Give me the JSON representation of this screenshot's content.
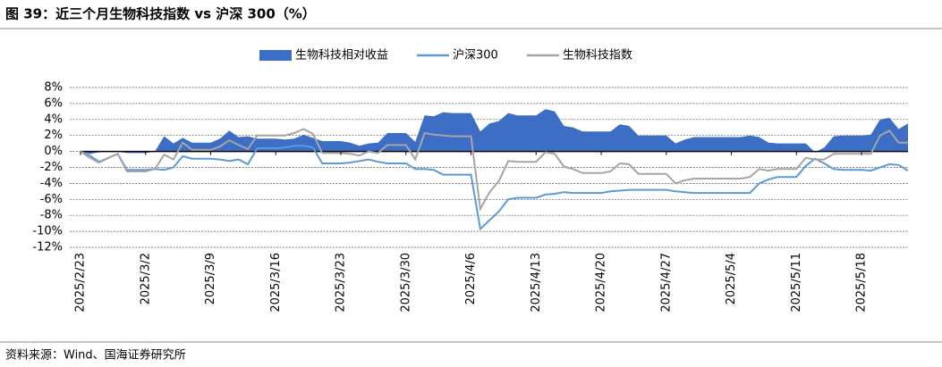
{
  "title": "图 39：近三个月生物科技指数 vs 沪深 300（%）",
  "source": "资料来源：Wind、国海证券研究所",
  "chart_data": {
    "type": "line",
    "legend": "top",
    "grid": true,
    "categories": [
      "2025/2/23",
      null,
      null,
      null,
      null,
      null,
      null,
      "2025/3/2",
      null,
      null,
      null,
      null,
      null,
      null,
      "2025/3/9",
      null,
      null,
      null,
      null,
      null,
      null,
      "2025/3/16",
      null,
      null,
      null,
      null,
      null,
      null,
      "2025/3/23",
      null,
      null,
      null,
      null,
      null,
      null,
      "2025/3/30",
      null,
      null,
      null,
      null,
      null,
      null,
      "2025/4/6",
      null,
      null,
      null,
      null,
      null,
      null,
      "2025/4/13",
      null,
      null,
      null,
      null,
      null,
      null,
      "2025/4/20",
      null,
      null,
      null,
      null,
      null,
      null,
      "2025/4/27",
      null,
      null,
      null,
      null,
      null,
      null,
      "2025/5/4",
      null,
      null,
      null,
      null,
      null,
      null,
      "2025/5/11",
      null,
      null,
      null,
      null,
      null,
      null,
      "2025/5/18",
      null,
      null,
      null,
      null,
      null
    ],
    "ylim": [
      -12,
      8
    ],
    "yticks": [
      {
        "value": 8,
        "label": "8%"
      },
      {
        "value": 6,
        "label": "6%"
      },
      {
        "value": 4,
        "label": "4%"
      },
      {
        "value": 2,
        "label": "2%"
      },
      {
        "value": 0,
        "label": "0%"
      },
      {
        "value": -2,
        "label": "-2%"
      },
      {
        "value": -4,
        "label": "-4%"
      },
      {
        "value": -6,
        "label": "-6%"
      },
      {
        "value": -8,
        "label": "-8%"
      },
      {
        "value": -10,
        "label": "-10%"
      },
      {
        "value": -12,
        "label": "-12%"
      }
    ],
    "series": [
      {
        "name": "生物科技相对收益",
        "style": "area",
        "color": "#3d6ec6",
        "values": [
          0,
          -0.3,
          -0.1,
          0,
          0,
          -0.2,
          -0.2,
          -0.2,
          0,
          1.9,
          1.0,
          1.7,
          1.1,
          1.1,
          1.1,
          1.6,
          2.6,
          1.8,
          1.9,
          1.6,
          1.6,
          1.6,
          1.5,
          1.6,
          2.1,
          1.7,
          1.3,
          1.3,
          1.3,
          1.1,
          0.7,
          1.0,
          1.1,
          2.3,
          2.3,
          2.3,
          1.2,
          4.5,
          4.4,
          4.9,
          4.8,
          4.8,
          4.8,
          2.5,
          3.5,
          3.8,
          4.8,
          4.5,
          4.5,
          4.5,
          5.3,
          5.0,
          3.2,
          3.0,
          2.5,
          2.5,
          2.5,
          2.5,
          3.4,
          3.2,
          2.0,
          2.0,
          2.0,
          2.0,
          1.0,
          1.5,
          1.8,
          1.8,
          1.8,
          1.8,
          1.8,
          1.8,
          2.0,
          1.8,
          1.1,
          1.0,
          1.0,
          1.0,
          1.0,
          -0.1,
          0.5,
          1.9,
          2.0,
          2.0,
          2.0,
          2.1,
          4.0,
          4.2,
          2.8,
          3.5
        ]
      },
      {
        "name": "沪深300",
        "style": "line",
        "color": "#5b9bd5",
        "values": [
          0,
          -0.5,
          -1.3,
          -0.8,
          -0.3,
          -2.3,
          -2.3,
          -2.3,
          -2.2,
          -2.3,
          -2.0,
          -0.6,
          -0.9,
          -0.9,
          -0.9,
          -1.0,
          -1.2,
          -1.0,
          -1.6,
          0.4,
          0.4,
          0.4,
          0.5,
          0.7,
          0.7,
          0.5,
          -1.5,
          -1.5,
          -1.5,
          -1.4,
          -1.2,
          -1.0,
          -1.3,
          -1.5,
          -1.5,
          -1.5,
          -2.2,
          -2.2,
          -2.3,
          -2.9,
          -2.9,
          -2.9,
          -2.9,
          -9.7,
          -8.6,
          -7.5,
          -6.0,
          -5.8,
          -5.8,
          -5.8,
          -5.4,
          -5.3,
          -5.1,
          -5.2,
          -5.2,
          -5.2,
          -5.2,
          -5.0,
          -4.9,
          -4.8,
          -4.8,
          -4.8,
          -4.8,
          -4.8,
          -5.0,
          -5.1,
          -5.2,
          -5.2,
          -5.2,
          -5.2,
          -5.2,
          -5.2,
          -5.2,
          -4.0,
          -3.5,
          -3.2,
          -3.2,
          -3.2,
          -1.8,
          -0.9,
          -1.5,
          -2.2,
          -2.3,
          -2.3,
          -2.3,
          -2.4,
          -2.0,
          -1.6,
          -1.7,
          -2.4
        ]
      },
      {
        "name": "生物科技指数",
        "style": "line",
        "color": "#a5a5a5",
        "values": [
          0,
          -0.8,
          -1.4,
          -0.8,
          -0.3,
          -2.5,
          -2.5,
          -2.5,
          -2.2,
          -0.4,
          -1.0,
          1.1,
          0.2,
          0.2,
          0.2,
          0.6,
          1.4,
          0.8,
          0.3,
          2.0,
          2.0,
          2.0,
          2.0,
          2.3,
          2.8,
          2.2,
          -0.2,
          -0.2,
          -0.2,
          -0.3,
          -0.5,
          0.0,
          -0.2,
          0.8,
          0.8,
          0.8,
          -1.0,
          2.3,
          2.1,
          2.0,
          1.9,
          1.9,
          1.9,
          -7.2,
          -5.1,
          -3.7,
          -1.2,
          -1.3,
          -1.3,
          -1.3,
          -0.1,
          -0.3,
          -1.9,
          -2.2,
          -2.7,
          -2.7,
          -2.7,
          -2.5,
          -1.5,
          -1.6,
          -2.8,
          -2.8,
          -2.8,
          -2.8,
          -4.0,
          -3.6,
          -3.4,
          -3.4,
          -3.4,
          -3.4,
          -3.4,
          -3.4,
          -3.2,
          -2.2,
          -2.4,
          -2.2,
          -2.2,
          -2.2,
          -0.8,
          -1.0,
          -1.0,
          -0.3,
          -0.3,
          -0.3,
          -0.3,
          -0.3,
          2.0,
          2.6,
          1.1,
          1.1
        ]
      }
    ]
  }
}
